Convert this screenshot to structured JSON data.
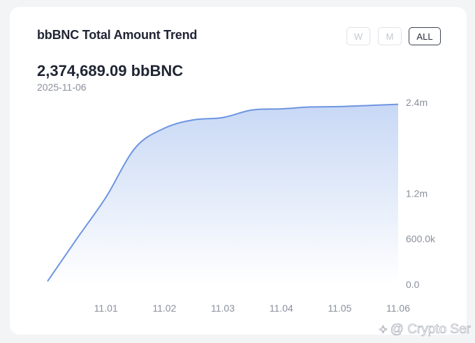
{
  "card": {
    "title": "bbBNC Total Amount Trend",
    "amount": "2,374,689.09 bbBNC",
    "date": "2025-11-06"
  },
  "range_buttons": {
    "w": "W",
    "m": "M",
    "all": "ALL",
    "selected": "ALL"
  },
  "watermark": {
    "text": "@ Crypto Ser",
    "icon": "binance-square-logo-icon"
  },
  "colors": {
    "line": "#6d95e2",
    "area_top": "#c8d8f5",
    "area_bottom": "#ffffff",
    "axis_label": "#8a909c"
  },
  "chart_data": {
    "type": "area",
    "title": "",
    "xlabel": "",
    "ylabel": "",
    "x_tick_labels": [
      "11.01",
      "11.02",
      "11.03",
      "11.04",
      "11.05",
      "11.06"
    ],
    "y_tick_labels": [
      "0.0",
      "600.0k",
      "1.2m",
      "2.4m"
    ],
    "y_tick_values": [
      0,
      600000,
      1200000,
      2400000
    ],
    "ylim": [
      0,
      2500000
    ],
    "xlim": [
      -1,
      5
    ],
    "y_axis_position": "right",
    "grid": false,
    "legend": "none",
    "series": [
      {
        "x": [
          -1,
          -0.5,
          0,
          0.5,
          1,
          1.5,
          2,
          2.5,
          3,
          3.5,
          4,
          4.5,
          5
        ],
        "values": [
          40000,
          600000,
          1150000,
          1800000,
          2060000,
          2170000,
          2200000,
          2300000,
          2315000,
          2340000,
          2345000,
          2360000,
          2374689
        ]
      }
    ]
  }
}
